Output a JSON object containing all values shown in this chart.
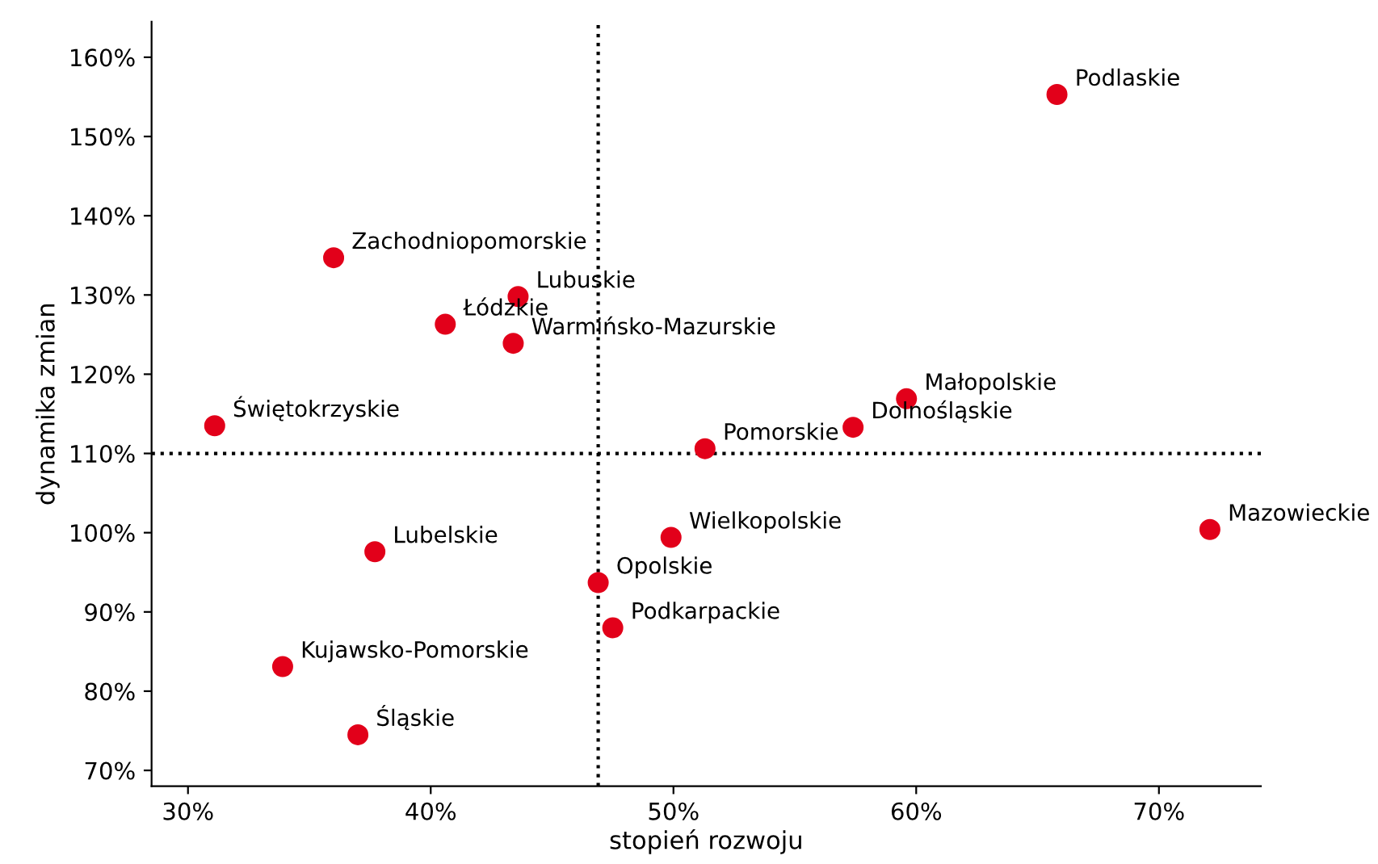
{
  "chart_data": {
    "type": "scatter",
    "xlabel": "stopień rozwoju",
    "ylabel": "dynamika zmian",
    "marker": "circle",
    "grid": false,
    "legend": false,
    "x": [
      65.8,
      36.0,
      43.6,
      40.6,
      43.4,
      31.1,
      59.6,
      57.4,
      51.3,
      72.1,
      49.9,
      37.7,
      46.9,
      47.5,
      33.9,
      37.0
    ],
    "series": [
      {
        "color": "#e2001a",
        "values": [
          155.3,
          134.7,
          129.8,
          126.3,
          123.9,
          113.5,
          116.9,
          113.3,
          110.6,
          100.4,
          99.4,
          97.6,
          93.7,
          88.0,
          83.1,
          74.5
        ]
      }
    ],
    "annotations": [
      {
        "text": "Podlaskie",
        "x": 65.8,
        "y": 155.3
      },
      {
        "text": "Zachodniopomorskie",
        "x": 36.0,
        "y": 134.7
      },
      {
        "text": "Lubuskie",
        "x": 43.6,
        "y": 129.8
      },
      {
        "text": "Łódzkie",
        "x": 40.6,
        "y": 126.3
      },
      {
        "text": "Warmińsko-Mazurskie",
        "x": 43.4,
        "y": 123.9
      },
      {
        "text": "Świętokrzyskie",
        "x": 31.1,
        "y": 113.5
      },
      {
        "text": "Małopolskie",
        "x": 59.6,
        "y": 116.9
      },
      {
        "text": "Dolnośląskie",
        "x": 57.4,
        "y": 113.3
      },
      {
        "text": "Pomorskie",
        "x": 51.3,
        "y": 110.6
      },
      {
        "text": "Mazowieckie",
        "x": 72.1,
        "y": 100.4
      },
      {
        "text": "Wielkopolskie",
        "x": 49.9,
        "y": 99.4
      },
      {
        "text": "Lubelskie",
        "x": 37.7,
        "y": 97.6
      },
      {
        "text": "Opolskie",
        "x": 46.9,
        "y": 93.7
      },
      {
        "text": "Podkarpackie",
        "x": 47.5,
        "y": 88.0
      },
      {
        "text": "Kujawsko-Pomorskie",
        "x": 33.9,
        "y": 83.1
      },
      {
        "text": "Śląskie",
        "x": 37.0,
        "y": 74.5
      }
    ],
    "ref_lines": [
      {
        "axis": "x",
        "value": 46.9,
        "line_style": "dotted",
        "color": "#000000"
      },
      {
        "axis": "y",
        "value": 110,
        "line_style": "dotted",
        "color": "#000000"
      }
    ],
    "xlim": [
      28.5,
      74.2
    ],
    "ylim": [
      68,
      164.5
    ],
    "xticks": [
      {
        "value": 30,
        "label": "30%"
      },
      {
        "value": 40,
        "label": "40%"
      },
      {
        "value": 50,
        "label": "50%"
      },
      {
        "value": 60,
        "label": "60%"
      },
      {
        "value": 70,
        "label": "70%"
      }
    ],
    "yticks": [
      {
        "value": 70,
        "label": "70%"
      },
      {
        "value": 80,
        "label": "80%"
      },
      {
        "value": 90,
        "label": "90%"
      },
      {
        "value": 100,
        "label": "100%"
      },
      {
        "value": 110,
        "label": "110%"
      },
      {
        "value": 120,
        "label": "120%"
      },
      {
        "value": 130,
        "label": "130%"
      },
      {
        "value": 140,
        "label": "140%"
      },
      {
        "value": 150,
        "label": "150%"
      },
      {
        "value": 160,
        "label": "160%"
      }
    ]
  }
}
